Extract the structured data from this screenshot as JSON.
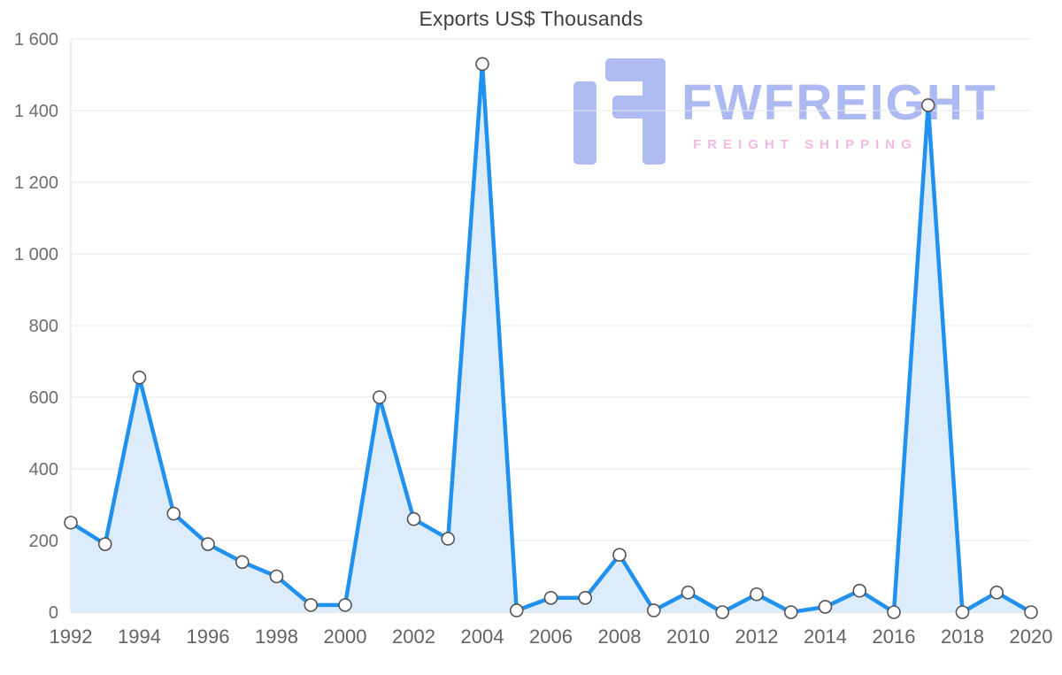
{
  "title": "Exports US$ Thousands",
  "watermark": {
    "brand": "FWFREIGHT",
    "tagline": "FREIGHT SHIPPING",
    "brand_color": "#a7b5f1",
    "tagline_color": "#f0b2e2",
    "glyph_color": "#a9b7f1"
  },
  "chart_data": {
    "type": "area",
    "title": "Exports US$ Thousands",
    "x": [
      1992,
      1993,
      1994,
      1995,
      1996,
      1997,
      1998,
      1999,
      2000,
      2001,
      2002,
      2003,
      2004,
      2005,
      2006,
      2007,
      2008,
      2009,
      2010,
      2011,
      2012,
      2013,
      2014,
      2015,
      2016,
      2017,
      2018,
      2019,
      2020
    ],
    "series": [
      {
        "name": "Exports US$ Thousands",
        "values": [
          250,
          190,
          655,
          275,
          190,
          140,
          100,
          20,
          20,
          600,
          260,
          205,
          1530,
          5,
          40,
          40,
          160,
          5,
          55,
          0,
          50,
          0,
          15,
          60,
          0,
          1415,
          0,
          55,
          0
        ]
      }
    ],
    "ylim": [
      0,
      1600
    ],
    "y_ticks": [
      0,
      200,
      400,
      600,
      800,
      1000,
      1200,
      1400,
      1600
    ],
    "y_tick_labels": [
      "0",
      "200",
      "400",
      "600",
      "800",
      "1 000",
      "1 200",
      "1 400",
      "1 600"
    ],
    "x_tick_labels": [
      "1992",
      "1994",
      "1996",
      "1998",
      "2000",
      "2002",
      "2004",
      "2006",
      "2008",
      "2010",
      "2012",
      "2014",
      "2016",
      "2018",
      "2020"
    ],
    "grid": true,
    "legend": "none",
    "line_color": "#2191f0",
    "fill_color": "#dcecfb",
    "marker_fill": "#ffffff",
    "marker_stroke": "#545454"
  }
}
